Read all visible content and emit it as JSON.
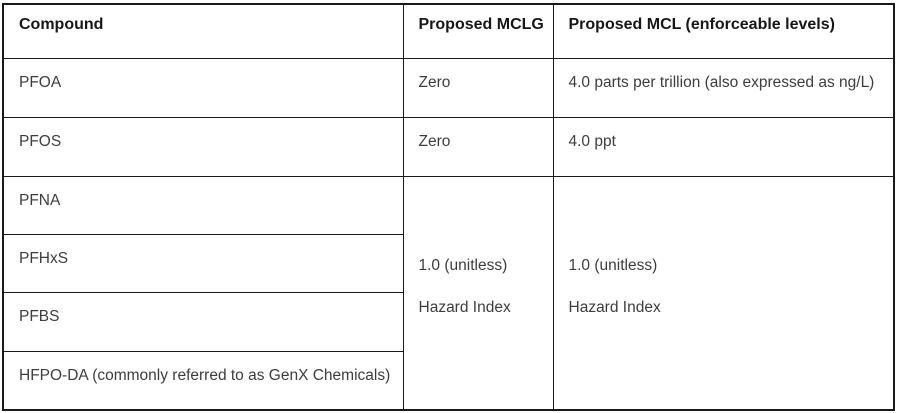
{
  "table": {
    "columns": [
      {
        "label": "Compound"
      },
      {
        "label": "Proposed MCLG"
      },
      {
        "label": "Proposed MCL (enforceable levels)"
      }
    ],
    "rows": [
      {
        "compound": "PFOA",
        "mclg": "Zero",
        "mcl": "4.0 parts per trillion (also expressed as ng/L)"
      },
      {
        "compound": "PFOS",
        "mclg": "Zero",
        "mcl": "4.0 ppt"
      },
      {
        "compound": "PFNA"
      },
      {
        "compound": "PFHxS"
      },
      {
        "compound": "PFBS"
      },
      {
        "compound": "HFPO-DA (commonly referred to as GenX Chemicals)"
      }
    ],
    "merged_mclg": {
      "line1": "1.0 (unitless)",
      "line2": "Hazard Index"
    },
    "merged_mcl": {
      "line1": "1.0 (unitless)",
      "line2": "Hazard Index"
    }
  },
  "colors": {
    "border": "#1a1a1a",
    "header_text": "#171717",
    "body_text": "#3d3d3d",
    "background": "#ffffff"
  }
}
